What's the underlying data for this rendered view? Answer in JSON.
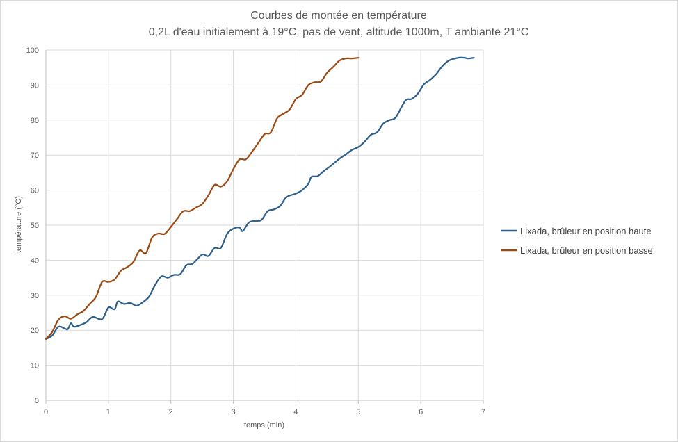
{
  "chart_data": {
    "type": "line",
    "title": "Courbes de montée en température",
    "subtitle": "0,2L d'eau initialement à 19°C, pas de vent, altitude 1000m, T ambiante 21°C",
    "xlabel": "temps (min)",
    "ylabel": "température (°C)",
    "xlim": [
      0,
      7
    ],
    "ylim": [
      0,
      100
    ],
    "x_ticks": [
      "0",
      "1",
      "2",
      "3",
      "4",
      "5",
      "6",
      "7"
    ],
    "y_ticks": [
      "0",
      "10",
      "20",
      "30",
      "40",
      "50",
      "60",
      "70",
      "80",
      "90",
      "100"
    ],
    "grid": true,
    "legend_position": "right",
    "series": [
      {
        "name": "Lixada, brûleur en position haute",
        "color": "#2e5f8a",
        "points": [
          [
            0,
            17.5
          ],
          [
            0.1,
            18.5
          ],
          [
            0.2,
            21
          ],
          [
            0.3,
            20.5
          ],
          [
            0.35,
            20.3
          ],
          [
            0.4,
            22
          ],
          [
            0.45,
            21
          ],
          [
            0.55,
            21.5
          ],
          [
            0.65,
            22.3
          ],
          [
            0.75,
            23.8
          ],
          [
            0.9,
            23.2
          ],
          [
            1.0,
            26.5
          ],
          [
            1.1,
            26
          ],
          [
            1.15,
            28.2
          ],
          [
            1.25,
            27.5
          ],
          [
            1.35,
            27.8
          ],
          [
            1.45,
            27
          ],
          [
            1.55,
            28
          ],
          [
            1.65,
            29.6
          ],
          [
            1.75,
            33
          ],
          [
            1.85,
            35.4
          ],
          [
            1.95,
            35
          ],
          [
            2.05,
            35.8
          ],
          [
            2.15,
            36
          ],
          [
            2.25,
            38.6
          ],
          [
            2.35,
            39
          ],
          [
            2.5,
            41.6
          ],
          [
            2.6,
            41.2
          ],
          [
            2.7,
            43.5
          ],
          [
            2.8,
            43.5
          ],
          [
            2.9,
            47.5
          ],
          [
            3.0,
            49
          ],
          [
            3.1,
            49.3
          ],
          [
            3.15,
            48.3
          ],
          [
            3.25,
            50.8
          ],
          [
            3.35,
            51.2
          ],
          [
            3.45,
            51.5
          ],
          [
            3.55,
            54
          ],
          [
            3.65,
            54.5
          ],
          [
            3.75,
            55.5
          ],
          [
            3.85,
            58
          ],
          [
            4.0,
            59
          ],
          [
            4.1,
            60
          ],
          [
            4.2,
            61.8
          ],
          [
            4.25,
            63.8
          ],
          [
            4.35,
            64
          ],
          [
            4.45,
            65.5
          ],
          [
            4.55,
            66.8
          ],
          [
            4.7,
            69
          ],
          [
            4.8,
            70.2
          ],
          [
            4.9,
            71.5
          ],
          [
            5.0,
            72.3
          ],
          [
            5.1,
            73.8
          ],
          [
            5.2,
            75.8
          ],
          [
            5.3,
            76.5
          ],
          [
            5.4,
            79
          ],
          [
            5.5,
            80
          ],
          [
            5.6,
            80.8
          ],
          [
            5.75,
            85.5
          ],
          [
            5.85,
            86
          ],
          [
            5.95,
            87.5
          ],
          [
            6.05,
            90.2
          ],
          [
            6.15,
            91.5
          ],
          [
            6.25,
            93.2
          ],
          [
            6.35,
            95.5
          ],
          [
            6.45,
            97
          ],
          [
            6.6,
            97.8
          ],
          [
            6.7,
            97.8
          ],
          [
            6.75,
            97.6
          ],
          [
            6.85,
            97.8
          ]
        ]
      },
      {
        "name": "Lixada, brûleur en position basse",
        "color": "#9c4a12",
        "points": [
          [
            0,
            17.5
          ],
          [
            0.1,
            19.5
          ],
          [
            0.2,
            23
          ],
          [
            0.3,
            24
          ],
          [
            0.4,
            23.3
          ],
          [
            0.5,
            24.5
          ],
          [
            0.6,
            25.5
          ],
          [
            0.7,
            27.5
          ],
          [
            0.8,
            29.5
          ],
          [
            0.9,
            33.8
          ],
          [
            1.0,
            33.8
          ],
          [
            1.1,
            34.5
          ],
          [
            1.2,
            37
          ],
          [
            1.3,
            38
          ],
          [
            1.4,
            39.5
          ],
          [
            1.5,
            42.8
          ],
          [
            1.6,
            42
          ],
          [
            1.7,
            46.5
          ],
          [
            1.8,
            47.6
          ],
          [
            1.9,
            47.5
          ],
          [
            2.0,
            49.5
          ],
          [
            2.1,
            51.8
          ],
          [
            2.2,
            54
          ],
          [
            2.3,
            54
          ],
          [
            2.4,
            55
          ],
          [
            2.5,
            56
          ],
          [
            2.6,
            58.5
          ],
          [
            2.7,
            61.5
          ],
          [
            2.8,
            61
          ],
          [
            2.9,
            62.5
          ],
          [
            3.0,
            66
          ],
          [
            3.1,
            68.8
          ],
          [
            3.2,
            68.8
          ],
          [
            3.3,
            71
          ],
          [
            3.4,
            73.5
          ],
          [
            3.5,
            76
          ],
          [
            3.6,
            76.5
          ],
          [
            3.7,
            80.5
          ],
          [
            3.8,
            81.8
          ],
          [
            3.9,
            83
          ],
          [
            4.0,
            86
          ],
          [
            4.1,
            87.2
          ],
          [
            4.2,
            90
          ],
          [
            4.3,
            90.8
          ],
          [
            4.4,
            91
          ],
          [
            4.5,
            93.5
          ],
          [
            4.6,
            95.2
          ],
          [
            4.7,
            97
          ],
          [
            4.8,
            97.6
          ],
          [
            4.9,
            97.6
          ],
          [
            5.0,
            97.8
          ]
        ]
      }
    ]
  }
}
